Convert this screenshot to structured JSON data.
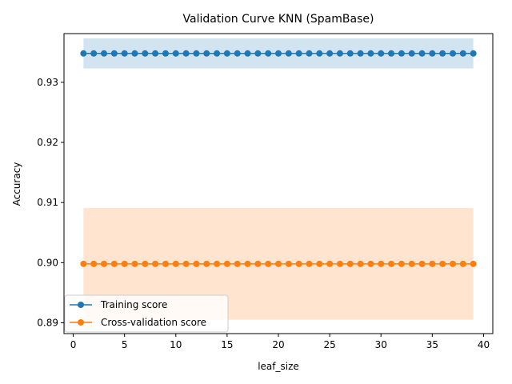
{
  "chart_data": {
    "type": "line",
    "title": "Validation Curve KNN (SpamBase)",
    "xlabel": "leaf_size",
    "ylabel": "Accuracy",
    "xlim": [
      -0.9,
      40.9
    ],
    "ylim": [
      0.8882,
      0.9381
    ],
    "xticks": [
      0,
      5,
      10,
      15,
      20,
      25,
      30,
      35,
      40
    ],
    "yticks": [
      0.89,
      0.9,
      0.91,
      0.92,
      0.93
    ],
    "ytick_labels": [
      "0.89",
      "0.90",
      "0.91",
      "0.92",
      "0.93"
    ],
    "grid": false,
    "legend_position": "lower-left",
    "x": [
      1,
      2,
      3,
      4,
      5,
      6,
      7,
      8,
      9,
      10,
      11,
      12,
      13,
      14,
      15,
      16,
      17,
      18,
      19,
      20,
      21,
      22,
      23,
      24,
      25,
      26,
      27,
      28,
      29,
      30,
      31,
      32,
      33,
      34,
      35,
      36,
      37,
      38,
      39
    ],
    "series": [
      {
        "name": "Training score",
        "color": "#1f77b4",
        "band_color": "#1f77b4",
        "mean": 0.9348,
        "band": [
          0.9323,
          0.9373
        ],
        "values": [
          0.9348,
          0.9348,
          0.9348,
          0.9348,
          0.9348,
          0.9348,
          0.9348,
          0.9348,
          0.9348,
          0.9348,
          0.9348,
          0.9348,
          0.9348,
          0.9348,
          0.9348,
          0.9348,
          0.9348,
          0.9348,
          0.9348,
          0.9348,
          0.9348,
          0.9348,
          0.9348,
          0.9348,
          0.9348,
          0.9348,
          0.9348,
          0.9348,
          0.9348,
          0.9348,
          0.9348,
          0.9348,
          0.9348,
          0.9348,
          0.9348,
          0.9348,
          0.9348,
          0.9348,
          0.9348
        ]
      },
      {
        "name": "Cross-validation score",
        "color": "#ff7f0e",
        "band_color": "#ff7f0e",
        "mean": 0.8998,
        "band": [
          0.8905,
          0.9091
        ],
        "values": [
          0.8998,
          0.8998,
          0.8998,
          0.8998,
          0.8998,
          0.8998,
          0.8998,
          0.8998,
          0.8998,
          0.8998,
          0.8998,
          0.8998,
          0.8998,
          0.8998,
          0.8998,
          0.8998,
          0.8998,
          0.8998,
          0.8998,
          0.8998,
          0.8998,
          0.8998,
          0.8998,
          0.8998,
          0.8998,
          0.8998,
          0.8998,
          0.8998,
          0.8998,
          0.8998,
          0.8998,
          0.8998,
          0.8998,
          0.8998,
          0.8998,
          0.8998,
          0.8998,
          0.8998,
          0.8998
        ]
      }
    ]
  }
}
